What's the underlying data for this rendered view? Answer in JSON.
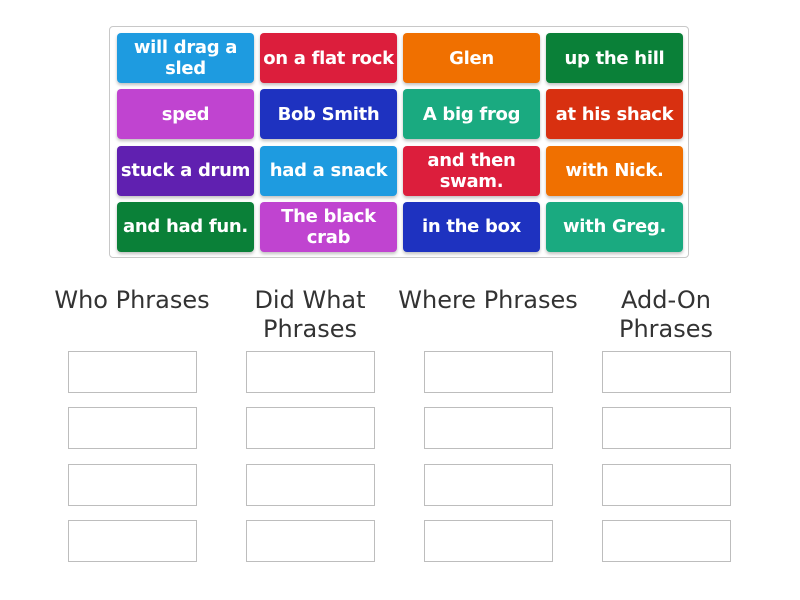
{
  "tiles": [
    {
      "text": "will drag a sled",
      "color": "#1e9be0"
    },
    {
      "text": "on a flat rock",
      "color": "#dc1e3c"
    },
    {
      "text": "Glen",
      "color": "#f07000"
    },
    {
      "text": "up the hill",
      "color": "#0a8038"
    },
    {
      "text": "sped",
      "color": "#c044d0"
    },
    {
      "text": "Bob Smith",
      "color": "#1e32c0"
    },
    {
      "text": "A big frog",
      "color": "#1aaa80"
    },
    {
      "text": "at his shack",
      "color": "#d83010"
    },
    {
      "text": "stuck a drum",
      "color": "#6020b0"
    },
    {
      "text": "had a snack",
      "color": "#1e9be0"
    },
    {
      "text": "and then swam.",
      "color": "#dc1e3c"
    },
    {
      "text": "with Nick.",
      "color": "#f07000"
    },
    {
      "text": "and had fun.",
      "color": "#0a8038"
    },
    {
      "text": "The black crab",
      "color": "#c044d0"
    },
    {
      "text": "in the box",
      "color": "#1e32c0"
    },
    {
      "text": "with Greg.",
      "color": "#1aaa80"
    }
  ],
  "columns": [
    {
      "title": "Who Phrases"
    },
    {
      "title": "Did What Phrases"
    },
    {
      "title": "Where Phrases"
    },
    {
      "title": "Add-On Phrases"
    }
  ]
}
